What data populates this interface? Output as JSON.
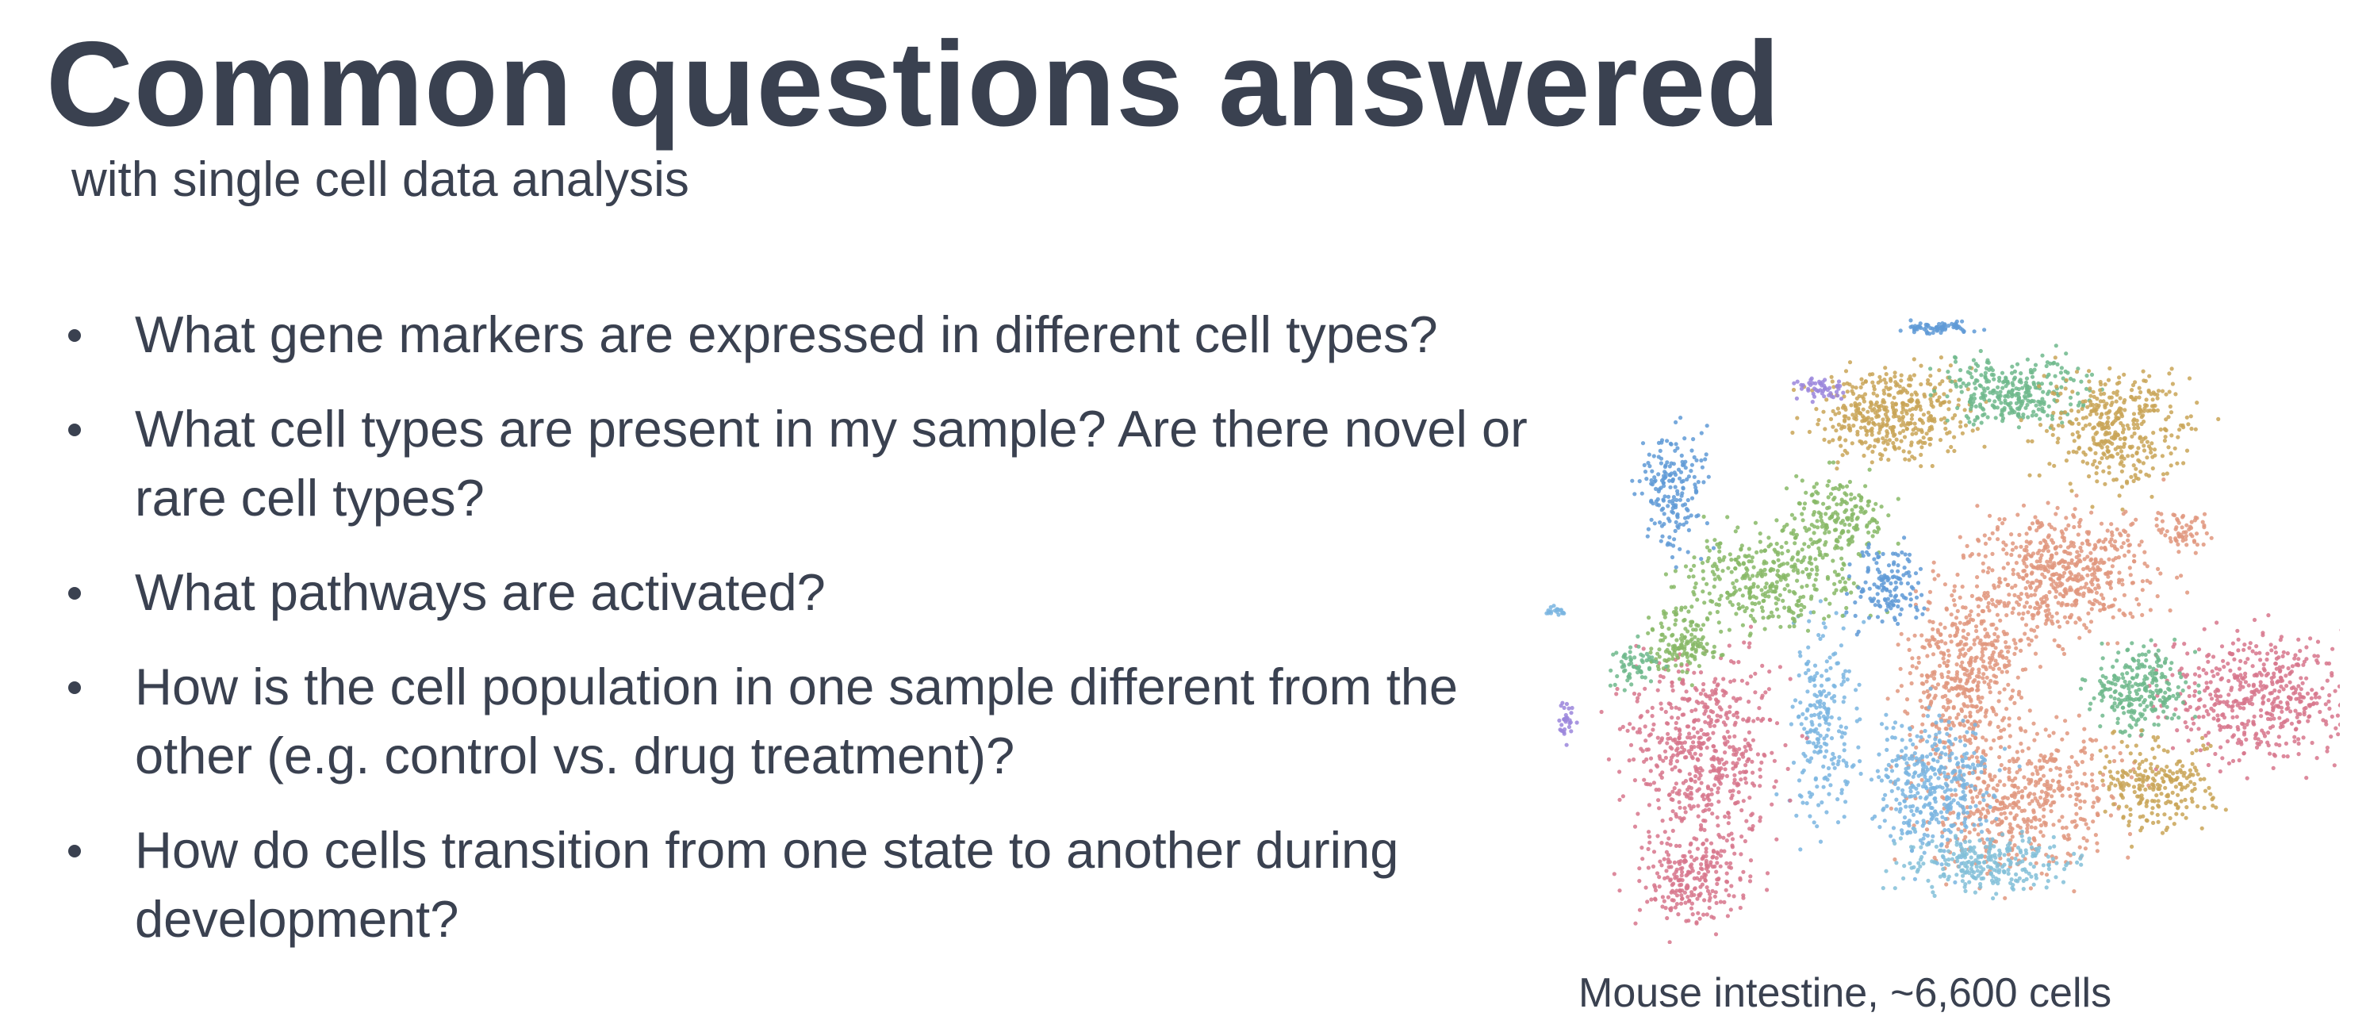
{
  "slide": {
    "title": "Common questions answered",
    "subtitle": "with single cell data analysis",
    "bullets": [
      "What gene markers are expressed in different cell types?",
      "What cell types are present in my sample? Are there novel or rare cell types?",
      "What pathways are activated?",
      "How is the cell population in one sample different from the other (e.g. control vs. drug treatment)?",
      "How do cells transition from one state to another during development?"
    ],
    "figure_caption": "Mouse intestine, ~6,600 cells"
  },
  "colors": {
    "text": "#3a4150",
    "clusters": [
      "#d7758c",
      "#e0967e",
      "#c9a557",
      "#87b966",
      "#6fb98c",
      "#7ab5e0",
      "#5f9ad6",
      "#9b86dc",
      "#82bfd8",
      "#d8a064"
    ]
  }
}
